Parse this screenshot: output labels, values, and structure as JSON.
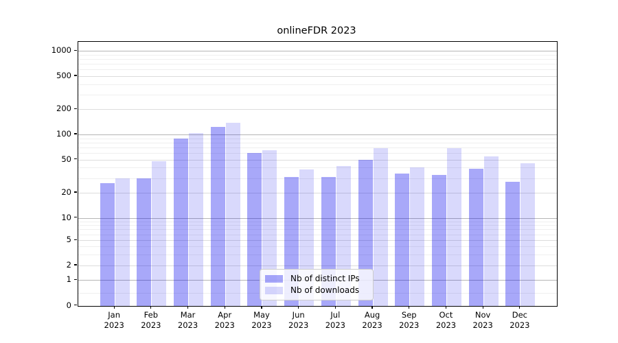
{
  "title": "onlineFDR 2023",
  "legend": {
    "items": [
      {
        "label": "Nb of distinct IPs"
      },
      {
        "label": "Nb of downloads"
      }
    ]
  },
  "chart_data": {
    "type": "bar",
    "title": "onlineFDR 2023",
    "categories": [
      "Jan 2023",
      "Feb 2023",
      "Mar 2023",
      "Apr 2023",
      "May 2023",
      "Jun 2023",
      "Jul 2023",
      "Aug 2023",
      "Sep 2023",
      "Oct 2023",
      "Nov 2023",
      "Dec 2023"
    ],
    "series": [
      {
        "name": "Nb of distinct IPs",
        "color": "#a8a8f9",
        "fill": "rgba(0,0,238,0.34)",
        "values": [
          26,
          30,
          90,
          122,
          60,
          31,
          31,
          50,
          34,
          33,
          39,
          27
        ]
      },
      {
        "name": "Nb of downloads",
        "color": "#d9d9fc",
        "fill": "rgba(0,0,238,0.15)",
        "values": [
          30,
          48,
          103,
          139,
          65,
          38,
          42,
          68,
          40,
          69,
          55,
          45
        ]
      }
    ],
    "xlabel": "",
    "ylabel": "",
    "yscale": "symlog",
    "yticks": [
      0,
      1,
      2,
      5,
      10,
      20,
      50,
      100,
      200,
      500,
      1000
    ],
    "ylim": [
      0,
      1290
    ],
    "grid": true,
    "legend_position": "lower center"
  },
  "colors": {
    "bar_dark": "#a8a8f9",
    "bar_light": "#d9d9fc",
    "grid_major": "#b5b5b5",
    "grid_mid": "#dcdcdc",
    "grid_minor": "#efefef",
    "spine": "#000000",
    "text": "#000000",
    "legend_border": "#cccccc"
  }
}
